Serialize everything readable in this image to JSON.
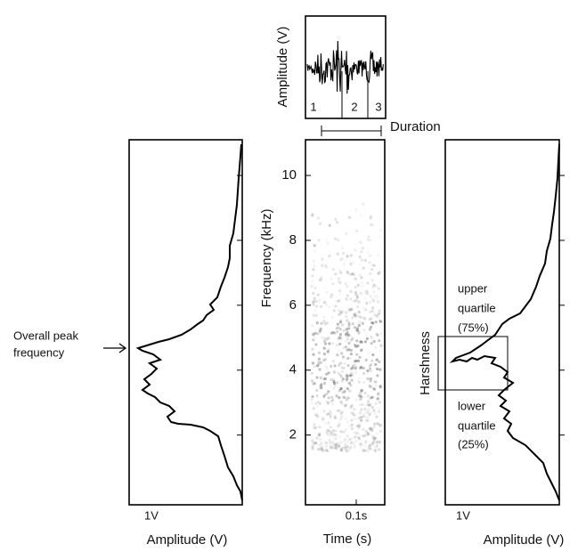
{
  "waveform": {
    "ylabel": "Amplitude (V)",
    "segments": [
      "1",
      "2",
      "3"
    ],
    "duration_label": "Duration"
  },
  "spectrogram": {
    "ylabel": "Frequency (kHz)",
    "ylim": [
      -0.15,
      11.1
    ],
    "yticks": [
      2,
      4,
      6,
      8,
      10
    ],
    "xtick": "0.1s",
    "xlabel": "Time (s)"
  },
  "left_spectrum": {
    "scale": "1V",
    "xlabel": "Amplitude (V)",
    "annotation": [
      "Overall peak",
      "frequency"
    ]
  },
  "right_spectrum": {
    "scale": "1V",
    "xlabel": "Amplitude (V)",
    "bracket_label": "Harshness",
    "upper": [
      "upper",
      "quartile",
      "(75%)"
    ],
    "lower": [
      "lower",
      "quartile",
      "(25%)"
    ]
  }
}
